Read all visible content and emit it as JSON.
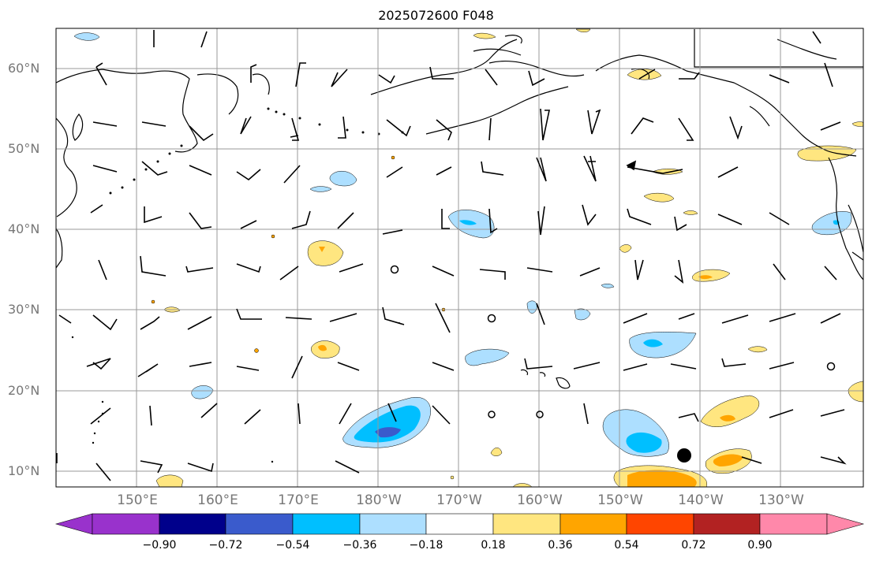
{
  "title": "2025072600 F048",
  "lat_labels": [
    "60°N",
    "50°N",
    "40°N",
    "30°N",
    "20°N",
    "10°N"
  ],
  "lon_labels": [
    "150°E",
    "160°E",
    "170°E",
    "180°W",
    "170°W",
    "160°W",
    "150°W",
    "140°W",
    "130°W"
  ],
  "colorbar": {
    "ticks": [
      "−0.90",
      "−0.72",
      "−0.54",
      "−0.36",
      "−0.18",
      "0.18",
      "0.36",
      "0.54",
      "0.72",
      "0.90"
    ],
    "colors": [
      "#9932CC",
      "#00008B",
      "#3A5BCC",
      "#00BFFF",
      "#ADDFFF",
      "#FFFFFF",
      "#FFE680",
      "#FFA500",
      "#FF4500",
      "#B22222",
      "#FF88AA"
    ]
  }
}
